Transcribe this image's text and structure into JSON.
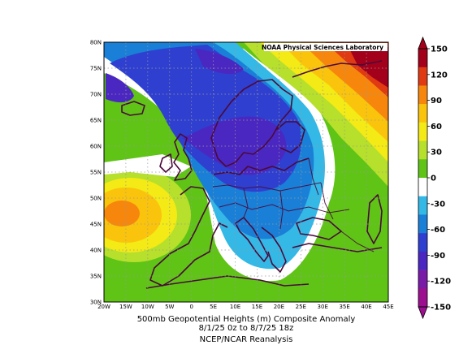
{
  "header": {
    "credit": "NOAA Physical Sciences Laboratory"
  },
  "map": {
    "projection": "cylindrical",
    "lon_range": [
      -20,
      45
    ],
    "lat_range": [
      30,
      80
    ],
    "lat_ticks": [
      "30N",
      "35N",
      "40N",
      "45N",
      "50N",
      "55N",
      "60N",
      "65N",
      "70N",
      "75N",
      "80N"
    ],
    "lon_ticks": [
      "20W",
      "15W",
      "10W",
      "5W",
      "0",
      "5E",
      "10E",
      "15E",
      "20E",
      "25E",
      "30E",
      "35E",
      "40E",
      "45E"
    ],
    "grid": "dotted"
  },
  "colorbar": {
    "labels": [
      "150",
      "120",
      "90",
      "60",
      "30",
      "0",
      "-30",
      "-60",
      "-90",
      "-120",
      "-150"
    ],
    "colors": [
      "#a3001b",
      "#e03a12",
      "#f7870c",
      "#fbc40c",
      "#f3ea16",
      "#b6e02b",
      "#5fc416",
      "#ffffff",
      "#34b8e6",
      "#1a7fd7",
      "#2f3fd0",
      "#4a27c0",
      "#7a1ba8",
      "#9c1090"
    ]
  },
  "caption": {
    "line1": "500mb Geopotential Heights (m)   Composite Anomaly",
    "line2": "8/1/25 0z  to 8/7/25 18z",
    "line3": "NCEP/NCAR Reanalysis"
  }
}
